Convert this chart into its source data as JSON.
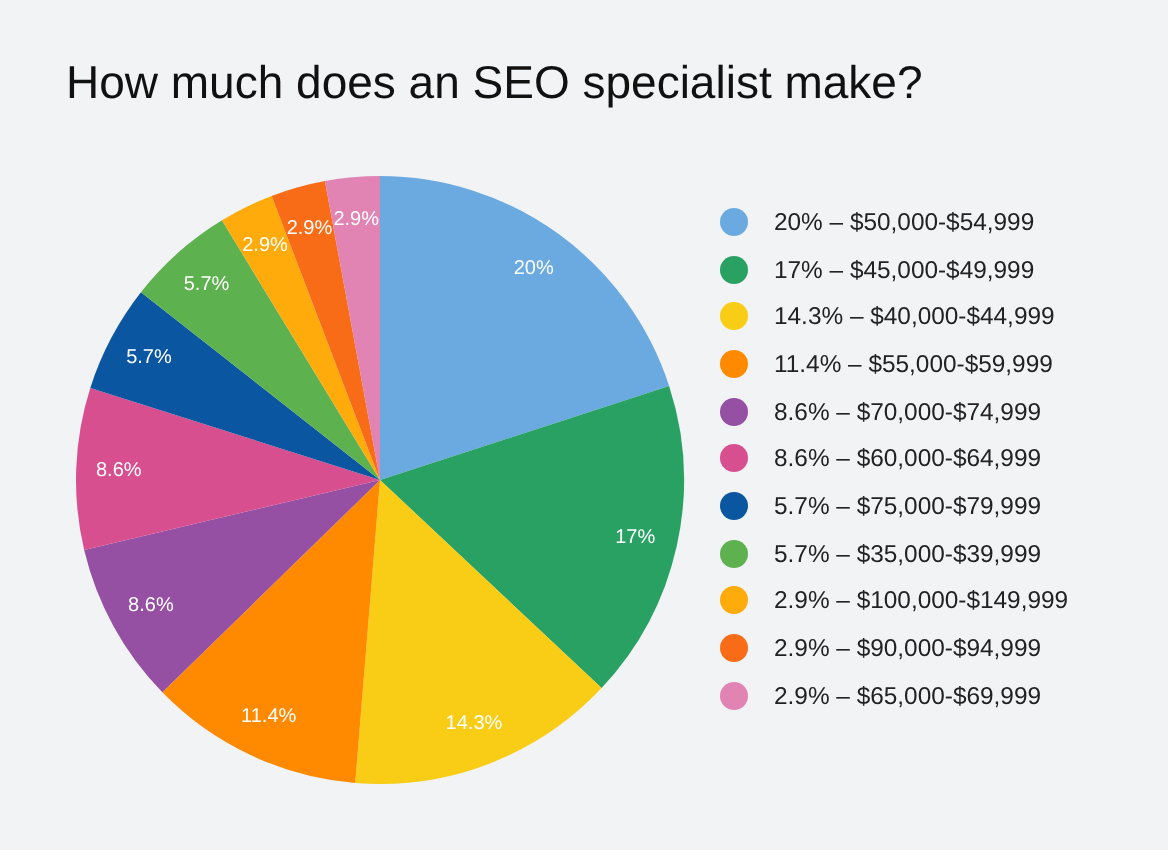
{
  "chart_data": {
    "type": "pie",
    "title": "How much does an SEO specialist make?",
    "categories": [
      "20% – $50,000-$54,999",
      "17% – $45,000-$49,999",
      "14.3% – $40,000-$44,999",
      "11.4% – $55,000-$59,999",
      "8.6% – $70,000-$74,999",
      "8.6% – $60,000-$64,999",
      "5.7% – $75,000-$79,999",
      "5.7% – $35,000-$39,999",
      "2.9% – $100,000-$149,999",
      "2.9% – $90,000-$94,999",
      "2.9% – $65,000-$69,999"
    ],
    "values": [
      20,
      17,
      14.3,
      11.4,
      8.6,
      8.6,
      5.7,
      5.7,
      2.9,
      2.9,
      2.9
    ],
    "value_labels": [
      "20%",
      "17%",
      "14.3%",
      "11.4%",
      "8.6%",
      "8.6%",
      "5.7%",
      "5.7%",
      "2.9%",
      "2.9%",
      "2.9%"
    ],
    "colors": [
      "#6aaae0",
      "#29a163",
      "#f9cc15",
      "#ff8a00",
      "#954fa3",
      "#d84f90",
      "#0a56a0",
      "#5eb14f",
      "#ffab0c",
      "#f96c17",
      "#e184b4"
    ],
    "legend": "right"
  }
}
